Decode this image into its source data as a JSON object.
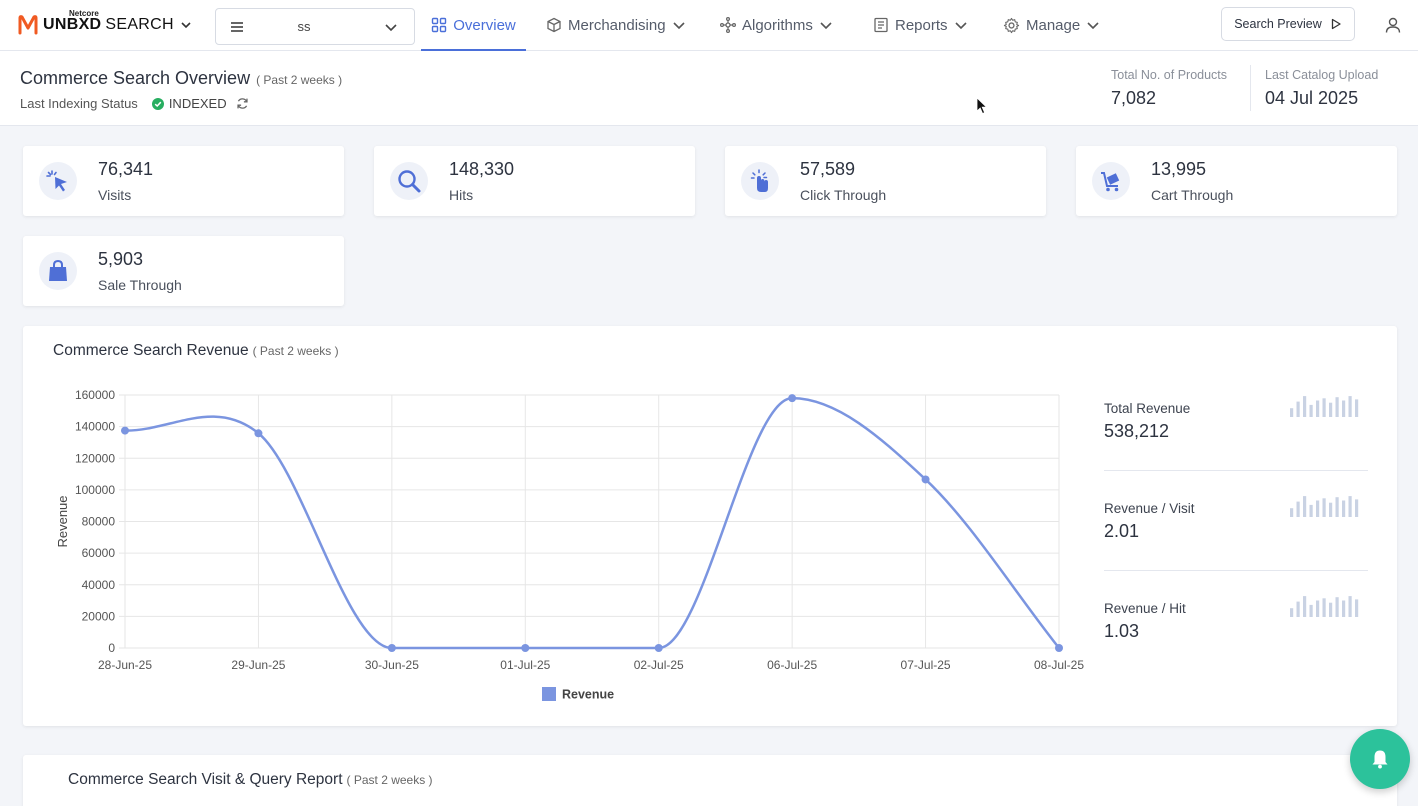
{
  "brand": {
    "top": "Netcore",
    "name": "UNBXD",
    "product": "SEARCH"
  },
  "site_selector": {
    "value": "ss"
  },
  "nav": {
    "tabs": [
      {
        "label": "Overview",
        "icon": "grid-icon",
        "active": true
      },
      {
        "label": "Merchandising",
        "icon": "box-icon"
      },
      {
        "label": "Algorithms",
        "icon": "network-icon"
      },
      {
        "label": "Reports",
        "icon": "document-icon"
      },
      {
        "label": "Manage",
        "icon": "gear-icon"
      }
    ],
    "search_preview": "Search Preview"
  },
  "overview": {
    "title": "Commerce Search Overview",
    "period": "( Past 2 weeks )",
    "indexing_label": "Last Indexing Status",
    "indexing_status": "INDEXED",
    "total_products_label": "Total No. of Products",
    "total_products": "7,082",
    "last_upload_label": "Last Catalog Upload",
    "last_upload": "04 Jul 2025"
  },
  "metrics": [
    {
      "value": "76,341",
      "label": "Visits",
      "icon": "cursor-click-icon"
    },
    {
      "value": "148,330",
      "label": "Hits",
      "icon": "magnifier-icon"
    },
    {
      "value": "57,589",
      "label": "Click Through",
      "icon": "hand-pointer-icon"
    },
    {
      "value": "13,995",
      "label": "Cart Through",
      "icon": "cart-icon"
    },
    {
      "value": "5,903",
      "label": "Sale Through",
      "icon": "shopping-bag-icon"
    }
  ],
  "revenue": {
    "title": "Commerce Search Revenue",
    "period": "( Past 2 weeks )",
    "side_stats": [
      {
        "label": "Total Revenue",
        "value": "538,212"
      },
      {
        "label": "Revenue / Visit",
        "value": "2.01"
      },
      {
        "label": "Revenue / Hit",
        "value": "1.03"
      }
    ]
  },
  "chart_data": {
    "type": "line",
    "title": "",
    "xlabel": "",
    "ylabel": "Revenue",
    "x": [
      "28-Jun-25",
      "29-Jun-25",
      "30-Jun-25",
      "01-Jul-25",
      "02-Jul-25",
      "06-Jul-25",
      "07-Jul-25",
      "08-Jul-25"
    ],
    "series": [
      {
        "name": "Revenue",
        "values": [
          137500,
          135800,
          0,
          0,
          0,
          158000,
          106600,
          0
        ],
        "color": "#7b95e0"
      }
    ],
    "ylim": [
      0,
      160000
    ],
    "yticks": [
      0,
      20000,
      40000,
      60000,
      80000,
      100000,
      120000,
      140000,
      160000
    ],
    "grid": true,
    "legend": "bottom-center"
  },
  "visit_query": {
    "title": "Commerce Search Visit & Query Report",
    "period": "( Past 2 weeks )"
  },
  "colors": {
    "accent": "#4a6fd9",
    "series": "#7b95e0",
    "fab": "#2cc29b",
    "brand_orange": "#f05a22"
  }
}
